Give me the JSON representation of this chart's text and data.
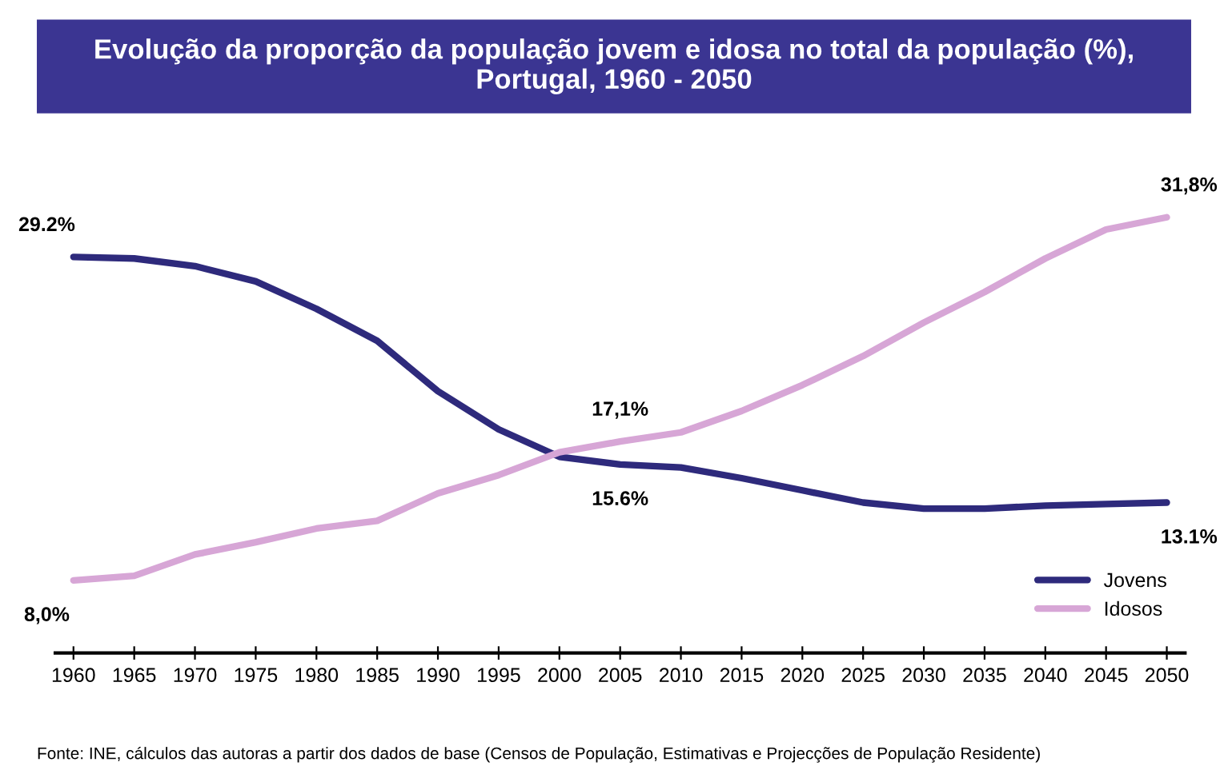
{
  "chart_data": {
    "type": "line",
    "title": "Evolução da proporção da população jovem e idosa no total da população (%),\nPortugal, 1960 - 2050",
    "categories": [
      "1960",
      "1965",
      "1970",
      "1975",
      "1980",
      "1985",
      "1990",
      "1995",
      "2000",
      "2005",
      "2010",
      "2015",
      "2020",
      "2025",
      "2030",
      "2035",
      "2040",
      "2045",
      "2050"
    ],
    "series": [
      {
        "name": "Jovens",
        "color": "#2e2a7c",
        "values": [
          29.2,
          29.1,
          28.6,
          27.6,
          25.8,
          23.7,
          20.4,
          17.9,
          16.1,
          15.6,
          15.4,
          14.7,
          13.9,
          13.1,
          12.7,
          12.7,
          12.9,
          13.0,
          13.1
        ],
        "value_labels": [
          "29.2%",
          null,
          null,
          null,
          null,
          null,
          null,
          null,
          null,
          "15.6%",
          null,
          null,
          null,
          null,
          null,
          null,
          null,
          null,
          "13.1%"
        ]
      },
      {
        "name": "Idosos",
        "color": "#d7a6d6",
        "values": [
          8.0,
          8.3,
          9.7,
          10.5,
          11.4,
          11.9,
          13.7,
          14.9,
          16.4,
          17.1,
          17.7,
          19.1,
          20.8,
          22.7,
          24.9,
          26.9,
          29.1,
          31.0,
          31.8
        ],
        "value_labels": [
          "8,0%",
          null,
          null,
          null,
          null,
          null,
          null,
          null,
          null,
          "17,1%",
          null,
          null,
          null,
          null,
          null,
          null,
          null,
          null,
          "31,8%"
        ]
      }
    ],
    "grid": false,
    "legend": "bottom right",
    "marker": "none",
    "line_style": "solid",
    "annotations": [
      "Fonte: INE, cálculos das autoras a partir dos dados de base (Censos de População, Estimativas e Projecções de População Residente)"
    ]
  }
}
